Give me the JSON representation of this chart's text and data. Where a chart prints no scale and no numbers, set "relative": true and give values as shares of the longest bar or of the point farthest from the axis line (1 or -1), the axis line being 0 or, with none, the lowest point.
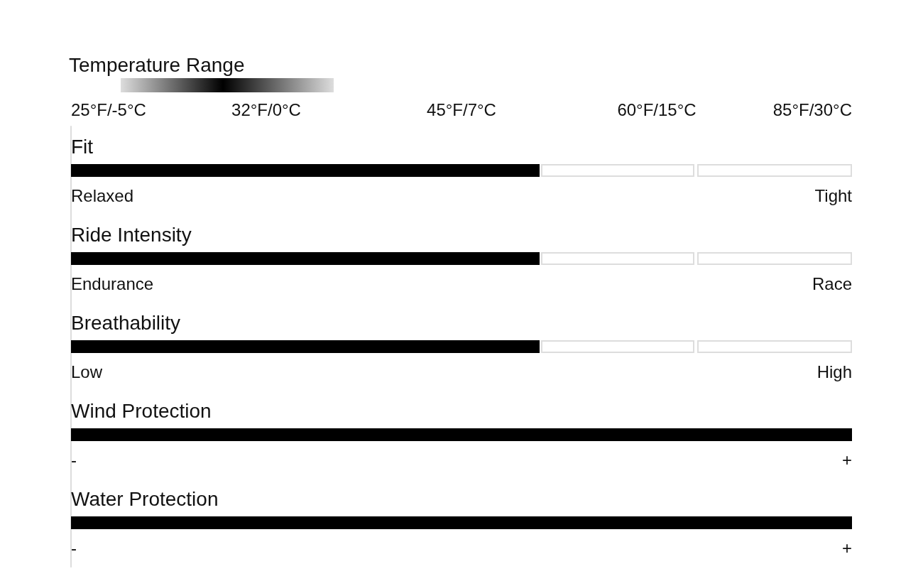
{
  "chart_data": [
    {
      "type": "other",
      "title": "Temperature Range",
      "categories": [
        "25°F/-5°C",
        "32°F/0°C",
        "45°F/7°C",
        "60°F/15°C",
        "85°F/30°C"
      ]
    },
    {
      "type": "bar",
      "orientation": "horizontal",
      "relative": true,
      "color": "#000000",
      "categories": [
        "Fit",
        "Ride Intensity",
        "Breathability",
        "Wind Protection",
        "Water Protection"
      ],
      "values": [
        0.6,
        0.6,
        0.6,
        1,
        1
      ],
      "annotations": [
        "Relaxed",
        "Tight",
        "Endurance",
        "Race",
        "Low",
        "High",
        "-",
        "+",
        "-",
        "+"
      ]
    }
  ]
}
